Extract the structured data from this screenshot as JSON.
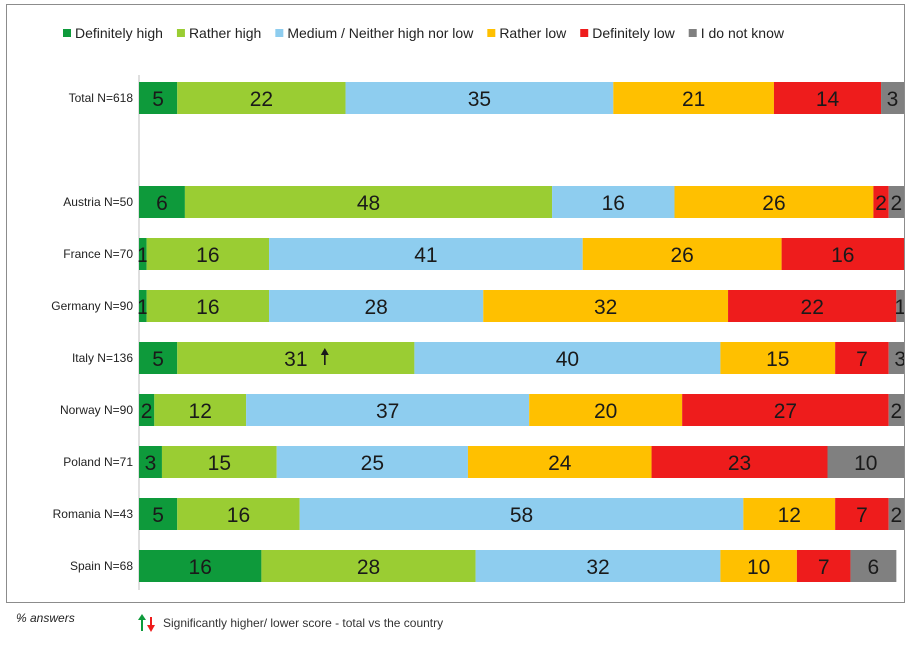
{
  "chart_data": {
    "type": "bar",
    "orientation": "horizontal",
    "stacked": true,
    "legend_position": "top",
    "categories": [
      "Total N=618",
      "Austria N=50",
      "France N=70",
      "Germany N=90",
      "Italy N=136",
      "Norway N=90",
      "Poland N=71",
      "Romania N=43",
      "Spain N=68"
    ],
    "series": [
      {
        "name": "Definitely high",
        "color": "#0e9a3b",
        "values": [
          5,
          6,
          1,
          1,
          5,
          2,
          3,
          5,
          16
        ]
      },
      {
        "name": "Rather high",
        "color": "#9acd33",
        "values": [
          22,
          48,
          16,
          16,
          31,
          12,
          15,
          16,
          28
        ]
      },
      {
        "name": "Medium / Neither high nor low",
        "color": "#8ecdef",
        "values": [
          35,
          16,
          41,
          28,
          40,
          37,
          25,
          58,
          32
        ]
      },
      {
        "name": "Rather low",
        "color": "#ffc000",
        "values": [
          21,
          26,
          26,
          32,
          15,
          20,
          24,
          12,
          10
        ]
      },
      {
        "name": "Definitely low",
        "color": "#ee1c1c",
        "values": [
          14,
          2,
          16,
          22,
          7,
          27,
          23,
          7,
          7
        ]
      },
      {
        "name": "I do not know",
        "color": "#808080",
        "values": [
          3,
          2,
          0,
          1,
          3,
          2,
          10,
          2,
          6
        ]
      }
    ],
    "significance_markers": [
      {
        "category": "Italy N=136",
        "series": "Rather high",
        "direction": "higher"
      }
    ],
    "xlim": [
      0,
      100
    ]
  },
  "footer": {
    "note": "% answers",
    "significance_legend": "Significantly higher/ lower score - total vs the country"
  }
}
